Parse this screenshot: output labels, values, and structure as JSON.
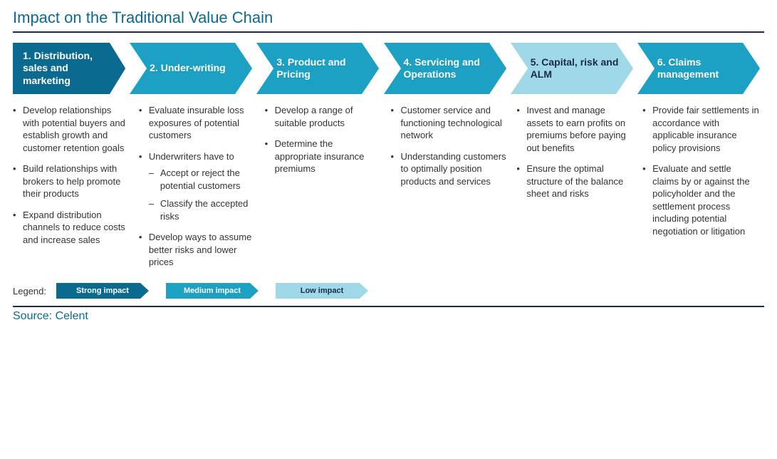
{
  "title": "Impact on the Traditional Value Chain",
  "colors": {
    "title": "#0b6a8f",
    "rule": "#1a2a4a",
    "strong": "#0b6a8f",
    "medium": "#1ca0c4",
    "low": "#9fd9e7",
    "text_dark": "#1a2a4a"
  },
  "steps": [
    {
      "label": "1. Distribution, sales and marketing",
      "fill": "#0b6a8f",
      "tone": "dark"
    },
    {
      "label": "2. Under-writing",
      "fill": "#1ca0c4",
      "tone": "dark"
    },
    {
      "label": "3. Product and Pricing",
      "fill": "#1ca0c4",
      "tone": "dark"
    },
    {
      "label": "4. Servicing and Operations",
      "fill": "#1ca0c4",
      "tone": "dark"
    },
    {
      "label": "5. Capital, risk and ALM",
      "fill": "#9fd9e7",
      "tone": "light"
    },
    {
      "label": "6. Claims management",
      "fill": "#1ca0c4",
      "tone": "dark"
    }
  ],
  "columns": [
    {
      "items": [
        {
          "text": "Develop relationships with potential buyers and establish growth and customer retention goals"
        },
        {
          "text": "Build relationships with brokers to help promote their products"
        },
        {
          "text": "Expand distribution channels to reduce costs and increase sales"
        }
      ]
    },
    {
      "items": [
        {
          "text": "Evaluate insurable loss exposures of potential customers"
        },
        {
          "text": "Underwriters have to",
          "sub": [
            "Accept or reject the potential customers",
            "Classify the accepted risks"
          ]
        },
        {
          "text": "Develop ways to assume better risks and lower prices"
        }
      ]
    },
    {
      "items": [
        {
          "text": "Develop a range of suitable products"
        },
        {
          "text": "Determine the appropriate insurance premiums"
        }
      ]
    },
    {
      "items": [
        {
          "text": "Customer service and functioning technological network"
        },
        {
          "text": "Understanding customers to optimally position products and services"
        }
      ]
    },
    {
      "items": [
        {
          "text": "Invest and manage assets to earn profits on premiums before paying out benefits"
        },
        {
          "text": "Ensure the optimal structure of the balance sheet and risks"
        }
      ]
    },
    {
      "items": [
        {
          "text": "Provide fair settlements in accordance with applicable insurance policy provisions"
        },
        {
          "text": "Evaluate and settle claims by or against the policyholder and the settlement process including potential negotiation or litigation"
        }
      ]
    }
  ],
  "legend": {
    "label": "Legend:",
    "items": [
      {
        "text": "Strong impact",
        "fill": "#0b6a8f",
        "tone": "dark"
      },
      {
        "text": "Medium impact",
        "fill": "#1ca0c4",
        "tone": "dark"
      },
      {
        "text": "Low impact",
        "fill": "#9fd9e7",
        "tone": "light"
      }
    ]
  },
  "source": "Source: Celent"
}
